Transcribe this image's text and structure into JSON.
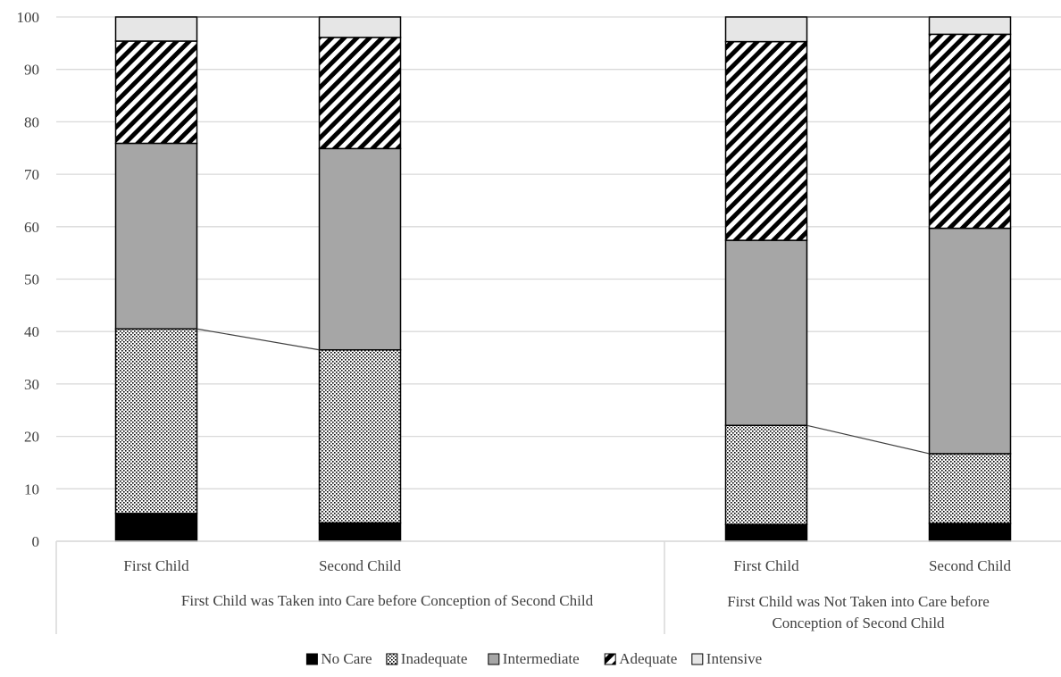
{
  "chart_data": {
    "type": "bar",
    "stacked": true,
    "title": "",
    "xlabel": "",
    "ylabel": "",
    "ylim": [
      0,
      100
    ],
    "yticks": [
      0,
      10,
      20,
      30,
      40,
      50,
      60,
      70,
      80,
      90,
      100
    ],
    "grid": true,
    "legend_position": "bottom",
    "groups": [
      {
        "label": "First Child was Taken into Care before Conception of Second Child",
        "label_lines": [
          "First Child was Taken into Care before Conception of Second Child"
        ],
        "categories": [
          "First Child",
          "Second Child"
        ]
      },
      {
        "label": "First Child was Not Taken into Care before Conception of Second Child",
        "label_lines": [
          "First Child was Not Taken into Care before",
          "Conception of Second Child"
        ],
        "categories": [
          "First Child",
          "Second Child"
        ]
      }
    ],
    "series": [
      {
        "name": "No Care",
        "pattern": "solid-black",
        "values": [
          5.3,
          3.5,
          3.2,
          3.4
        ]
      },
      {
        "name": "Inadequate",
        "pattern": "dots",
        "values": [
          35.2,
          33.0,
          18.9,
          13.3
        ]
      },
      {
        "name": "Intermediate",
        "pattern": "solid-gray",
        "values": [
          35.4,
          38.4,
          35.3,
          43.0
        ]
      },
      {
        "name": "Adequate",
        "pattern": "diagonal-stripes",
        "values": [
          19.5,
          21.2,
          37.9,
          37.0
        ]
      },
      {
        "name": "Intensive",
        "pattern": "light-gray",
        "values": [
          4.6,
          3.9,
          4.7,
          3.3
        ]
      }
    ],
    "connector_lines": [
      {
        "group": 0,
        "after_series": 1
      },
      {
        "group": 0,
        "after_series": 4
      },
      {
        "group": 1,
        "after_series": 1
      },
      {
        "group": 1,
        "after_series": 4
      }
    ],
    "colors": {
      "no_care": "#000000",
      "inadequate_bg": "#ffffff",
      "intermediate": "#a6a6a6",
      "adequate_stripe": "#000000",
      "intensive": "#e6e6e6",
      "grid": "#d9d9d9",
      "text": "#404040"
    }
  }
}
